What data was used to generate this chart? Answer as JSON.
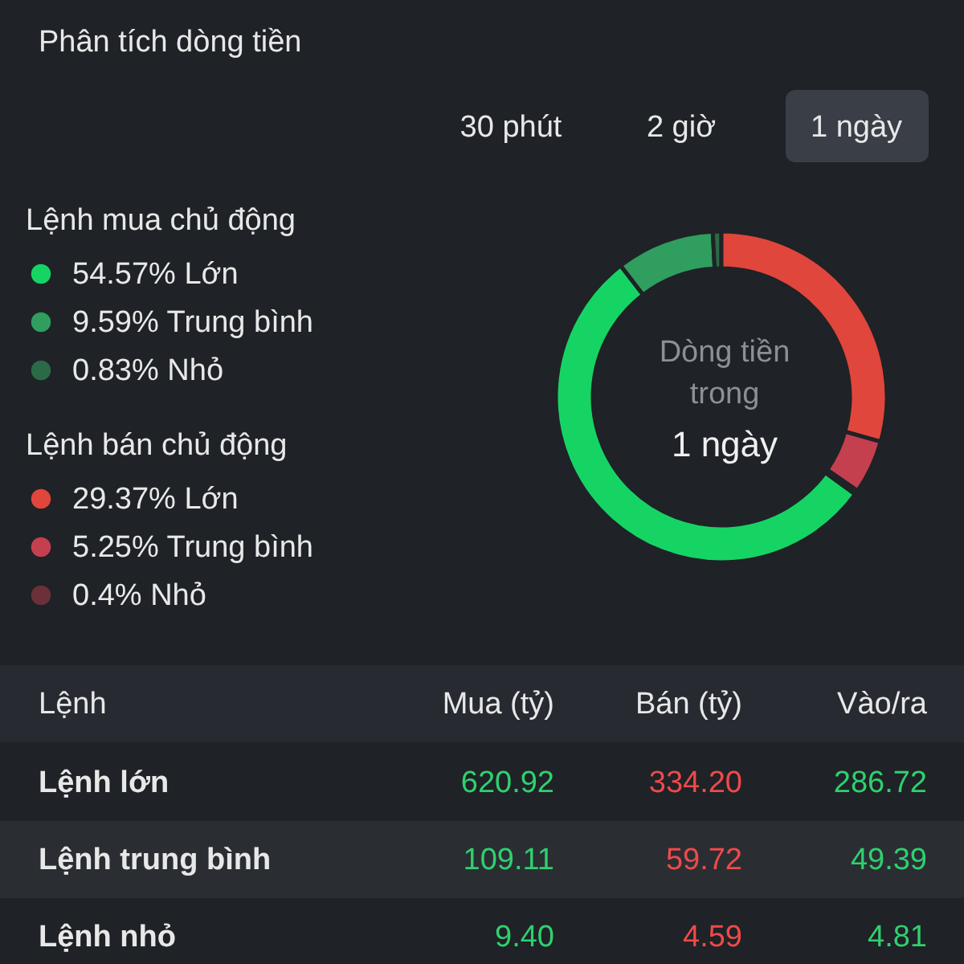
{
  "chart_data": {
    "type": "donut",
    "title": "Phân tích dòng tiền",
    "categories": [
      "Lớn",
      "Trung bình",
      "Nhỏ",
      "Lớn",
      "Trung bình",
      "Nhỏ"
    ],
    "values": [
      29.37,
      5.25,
      0.4,
      54.57,
      9.59,
      0.83
    ],
    "colors": [
      "#e0463b",
      "#c4404f",
      "#6b3039",
      "#16d464",
      "#2f9e5e",
      "#2b6a47"
    ],
    "value_labels": [
      "29.37%",
      "5.25%",
      "0.4%",
      "54.57%",
      "9.59%",
      "0.83%"
    ],
    "legend": "left",
    "annotations": [
      "30 phút",
      "2 giờ",
      "1 ngày",
      "Dòng tiền trong",
      "1 ngày",
      "Lệnh bán chủ động",
      "Lệnh mua chủ động",
      "Lệnh",
      "Mua (tỷ)",
      "Bán (tỷ)",
      "Vào/ra",
      "Lệnh lớn",
      "620.92",
      "334.20",
      "286.72",
      "Lệnh trung bình",
      "109.11",
      "59.72",
      "49.39",
      "Lệnh nhỏ",
      "9.40",
      "4.59",
      "4.81"
    ]
  }
}
